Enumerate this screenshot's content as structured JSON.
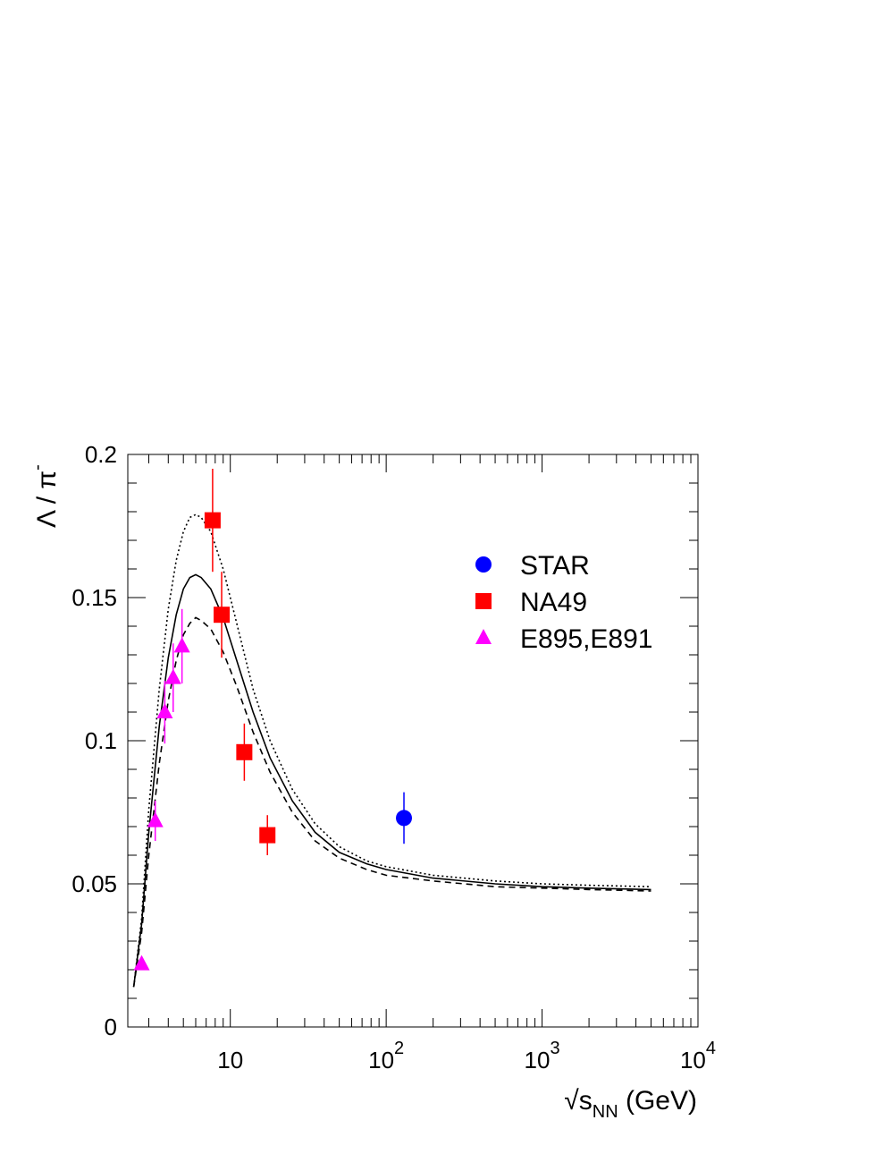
{
  "chart_data": {
    "type": "scatter",
    "title": "",
    "xlabel": {
      "root": "√",
      "base": "s",
      "sub": "NN",
      "unit": " (GeV)"
    },
    "ylabel": {
      "lambda": "Λ",
      "slash": " / ",
      "pi": "π",
      "sup": "-"
    },
    "x_scale": "log",
    "xlim": [
      2.2,
      10000
    ],
    "ylim": [
      0,
      0.2
    ],
    "y_ticks": [
      "0",
      "0.05",
      "0.1",
      "0.15",
      "0.2"
    ],
    "y_tick_values": [
      0,
      0.05,
      0.1,
      0.15,
      0.2
    ],
    "x_ticks": [
      {
        "value": 10,
        "base": "10",
        "exp": ""
      },
      {
        "value": 100,
        "base": "10",
        "exp": "2"
      },
      {
        "value": 1000,
        "base": "10",
        "exp": "3"
      },
      {
        "value": 10000,
        "base": "10",
        "exp": "4"
      }
    ],
    "grid": false,
    "legend_position": "top-right",
    "series": [
      {
        "name": "STAR",
        "marker": "circle",
        "color": "#0000ff",
        "points": [
          {
            "x": 130,
            "y": 0.073,
            "err": 0.009
          }
        ]
      },
      {
        "name": "NA49",
        "marker": "square",
        "color": "#ff0000",
        "points": [
          {
            "x": 7.7,
            "y": 0.177,
            "err": 0.018
          },
          {
            "x": 8.8,
            "y": 0.144,
            "err": 0.015
          },
          {
            "x": 12.3,
            "y": 0.096,
            "err": 0.01
          },
          {
            "x": 17.3,
            "y": 0.067,
            "err": 0.007
          }
        ]
      },
      {
        "name": "E895,E891",
        "marker": "triangle",
        "color": "#ff00ff",
        "points": [
          {
            "x": 2.7,
            "y": 0.022,
            "err": 0.0
          },
          {
            "x": 3.3,
            "y": 0.072,
            "err": 0.007
          },
          {
            "x": 3.8,
            "y": 0.11,
            "err": 0.011
          },
          {
            "x": 4.3,
            "y": 0.122,
            "err": 0.012
          },
          {
            "x": 4.9,
            "y": 0.133,
            "err": 0.013
          }
        ]
      }
    ],
    "curves": [
      {
        "style": "dotted",
        "points": [
          [
            2.4,
            0.014
          ],
          [
            2.7,
            0.038
          ],
          [
            3.0,
            0.076
          ],
          [
            3.5,
            0.118
          ],
          [
            4.0,
            0.146
          ],
          [
            4.5,
            0.163
          ],
          [
            5.0,
            0.173
          ],
          [
            5.5,
            0.178
          ],
          [
            6.0,
            0.179
          ],
          [
            6.5,
            0.178
          ],
          [
            7.5,
            0.173
          ],
          [
            9,
            0.16
          ],
          [
            11,
            0.141
          ],
          [
            14,
            0.118
          ],
          [
            18,
            0.1
          ],
          [
            25,
            0.083
          ],
          [
            35,
            0.071
          ],
          [
            50,
            0.063
          ],
          [
            75,
            0.058
          ],
          [
            100,
            0.056
          ],
          [
            200,
            0.053
          ],
          [
            500,
            0.051
          ],
          [
            1000,
            0.05
          ],
          [
            2000,
            0.0495
          ],
          [
            5000,
            0.049
          ]
        ]
      },
      {
        "style": "solid",
        "points": [
          [
            2.4,
            0.014
          ],
          [
            2.7,
            0.036
          ],
          [
            3.0,
            0.068
          ],
          [
            3.5,
            0.105
          ],
          [
            4.0,
            0.129
          ],
          [
            4.5,
            0.144
          ],
          [
            5.0,
            0.153
          ],
          [
            5.5,
            0.157
          ],
          [
            6.0,
            0.158
          ],
          [
            6.5,
            0.157
          ],
          [
            7.5,
            0.153
          ],
          [
            9,
            0.143
          ],
          [
            11,
            0.128
          ],
          [
            14,
            0.11
          ],
          [
            18,
            0.094
          ],
          [
            25,
            0.079
          ],
          [
            35,
            0.068
          ],
          [
            50,
            0.061
          ],
          [
            75,
            0.057
          ],
          [
            100,
            0.055
          ],
          [
            200,
            0.052
          ],
          [
            500,
            0.05
          ],
          [
            1000,
            0.049
          ],
          [
            2000,
            0.0485
          ],
          [
            5000,
            0.048
          ]
        ]
      },
      {
        "style": "dashed",
        "points": [
          [
            2.4,
            0.014
          ],
          [
            2.7,
            0.033
          ],
          [
            3.0,
            0.06
          ],
          [
            3.5,
            0.092
          ],
          [
            4.0,
            0.114
          ],
          [
            4.5,
            0.128
          ],
          [
            5.0,
            0.137
          ],
          [
            5.5,
            0.141
          ],
          [
            6.0,
            0.143
          ],
          [
            6.5,
            0.142
          ],
          [
            7.5,
            0.139
          ],
          [
            9,
            0.131
          ],
          [
            11,
            0.119
          ],
          [
            14,
            0.103
          ],
          [
            18,
            0.089
          ],
          [
            25,
            0.075
          ],
          [
            35,
            0.065
          ],
          [
            50,
            0.059
          ],
          [
            75,
            0.055
          ],
          [
            100,
            0.053
          ],
          [
            200,
            0.051
          ],
          [
            500,
            0.049
          ],
          [
            1000,
            0.0485
          ],
          [
            2000,
            0.048
          ],
          [
            5000,
            0.0475
          ]
        ]
      }
    ]
  }
}
